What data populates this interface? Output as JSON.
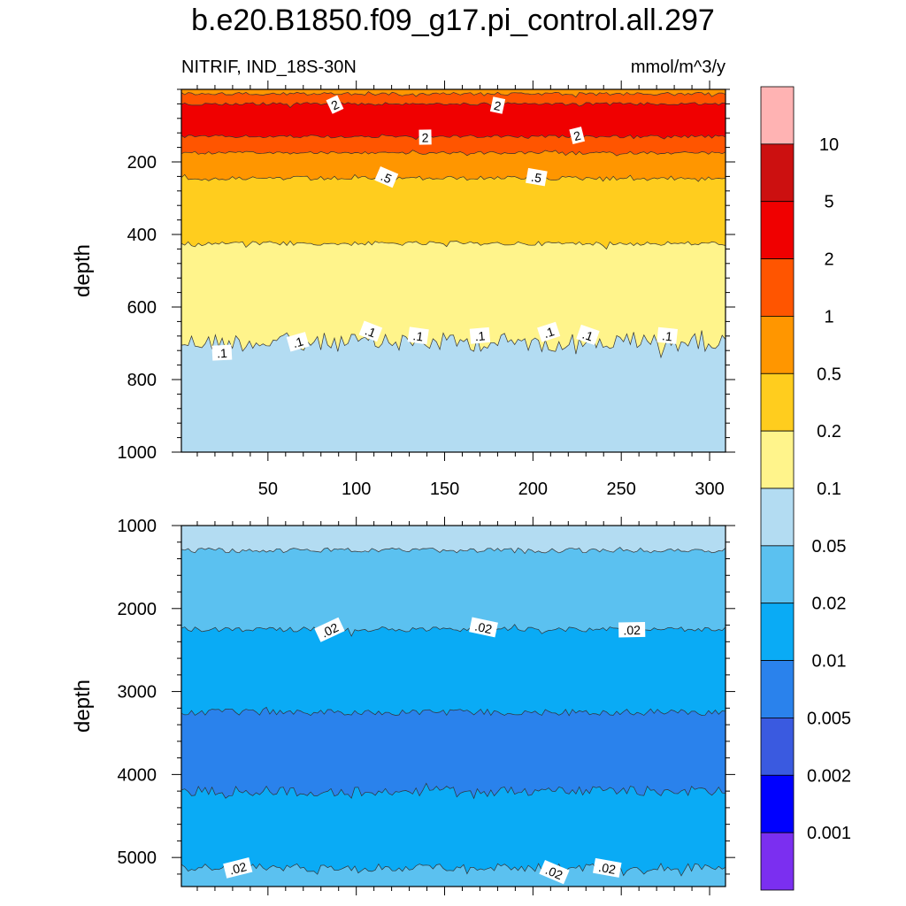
{
  "title": "b.e20.B1850.f09_g17.pi_control.all.297",
  "subtitle_left": "NITRIF, IND_18S-30N",
  "subtitle_right": "mmol/m^3/y",
  "chart_data": [
    {
      "type": "contour",
      "panel": "upper",
      "ylabel": "depth",
      "xlim": [
        1,
        309
      ],
      "ylim": [
        1000,
        0
      ],
      "xticks": [
        50,
        100,
        150,
        200,
        250,
        300
      ],
      "yticks": [
        200,
        400,
        600,
        800,
        1000
      ],
      "contour_bands": [
        {
          "lower": 0.05,
          "upper": 0.1,
          "from_depth": 1000,
          "to_depth": 697,
          "color": "#b3dcf2"
        },
        {
          "lower": 0.1,
          "upper": 0.2,
          "from_depth": 697,
          "to_depth": 425,
          "color": "#fff48b"
        },
        {
          "lower": 0.2,
          "upper": 0.5,
          "from_depth": 425,
          "to_depth": 245,
          "color": "#ffcd1e"
        },
        {
          "lower": 0.5,
          "upper": 1,
          "from_depth": 245,
          "to_depth": 175,
          "color": "#ff9600"
        },
        {
          "lower": 1,
          "upper": 2,
          "from_depth": 175,
          "to_depth": 130,
          "color": "#ff5500"
        },
        {
          "lower": 2,
          "upper": 5,
          "from_depth": 130,
          "to_depth": 40,
          "color": "#f00000"
        },
        {
          "lower": 1,
          "upper": 2,
          "from_depth": 40,
          "to_depth": 12,
          "color": "#ff5500"
        },
        {
          "lower": 0.5,
          "upper": 1,
          "from_depth": 12,
          "to_depth": 0,
          "color": "#ff9600"
        }
      ],
      "line_labels": [
        {
          "text": "2",
          "x": 88,
          "depth": 43
        },
        {
          "text": "2",
          "x": 180,
          "depth": 45
        },
        {
          "text": "2",
          "x": 139,
          "depth": 133
        },
        {
          "text": "2",
          "x": 225,
          "depth": 128
        },
        {
          "text": ".5",
          "x": 117,
          "depth": 243
        },
        {
          "text": ".5",
          "x": 202,
          "depth": 243
        },
        {
          "text": ".1",
          "x": 24,
          "depth": 727
        },
        {
          "text": ".1",
          "x": 67,
          "depth": 697
        },
        {
          "text": ".1",
          "x": 108,
          "depth": 668
        },
        {
          "text": ".1",
          "x": 135,
          "depth": 680
        },
        {
          "text": ".1",
          "x": 170,
          "depth": 680
        },
        {
          "text": ".1",
          "x": 209,
          "depth": 670
        },
        {
          "text": ".1",
          "x": 231,
          "depth": 678
        },
        {
          "text": ".1",
          "x": 276,
          "depth": 680
        }
      ]
    },
    {
      "type": "contour",
      "panel": "lower",
      "ylabel": "depth",
      "xlim": [
        1,
        309
      ],
      "ylim": [
        5350,
        1000
      ],
      "yticks": [
        1000,
        2000,
        3000,
        4000,
        5000
      ],
      "contour_bands": [
        {
          "lower": 0.02,
          "upper": 0.05,
          "from_depth": 5350,
          "to_depth": 5120,
          "color": "#5bc1f0"
        },
        {
          "lower": 0.01,
          "upper": 0.02,
          "from_depth": 5120,
          "to_depth": 4200,
          "color": "#0aabf5"
        },
        {
          "lower": 0.005,
          "upper": 0.01,
          "from_depth": 4200,
          "to_depth": 3250,
          "color": "#2a82ec"
        },
        {
          "lower": 0.01,
          "upper": 0.02,
          "from_depth": 3250,
          "to_depth": 2250,
          "color": "#0aabf5"
        },
        {
          "lower": 0.02,
          "upper": 0.05,
          "from_depth": 2250,
          "to_depth": 1300,
          "color": "#5bc1f0"
        },
        {
          "lower": 0.05,
          "upper": 0.1,
          "from_depth": 1300,
          "to_depth": 1000,
          "color": "#b3dcf2"
        }
      ],
      "line_labels": [
        {
          "text": ".02",
          "x": 85,
          "depth": 2260
        },
        {
          "text": ".02",
          "x": 172,
          "depth": 2230
        },
        {
          "text": ".02",
          "x": 256,
          "depth": 2260
        },
        {
          "text": ".02",
          "x": 33,
          "depth": 5130
        },
        {
          "text": ".02",
          "x": 212,
          "depth": 5180
        },
        {
          "text": ".02",
          "x": 242,
          "depth": 5130
        }
      ]
    },
    {
      "type": "colorbar",
      "levels": [
        "10",
        "5",
        "2",
        "1",
        "0.5",
        "0.2",
        "0.1",
        "0.05",
        "0.02",
        "0.01",
        "0.005",
        "0.002",
        "0.001"
      ],
      "colors": [
        "#ffb3b3",
        "#cc1010",
        "#f00000",
        "#ff5500",
        "#ff9600",
        "#ffcd1e",
        "#fff48b",
        "#b3dcf2",
        "#5bc1f0",
        "#0aabf5",
        "#2a82ec",
        "#3a5ae0",
        "#0000ff",
        "#7b2ff0"
      ]
    }
  ]
}
